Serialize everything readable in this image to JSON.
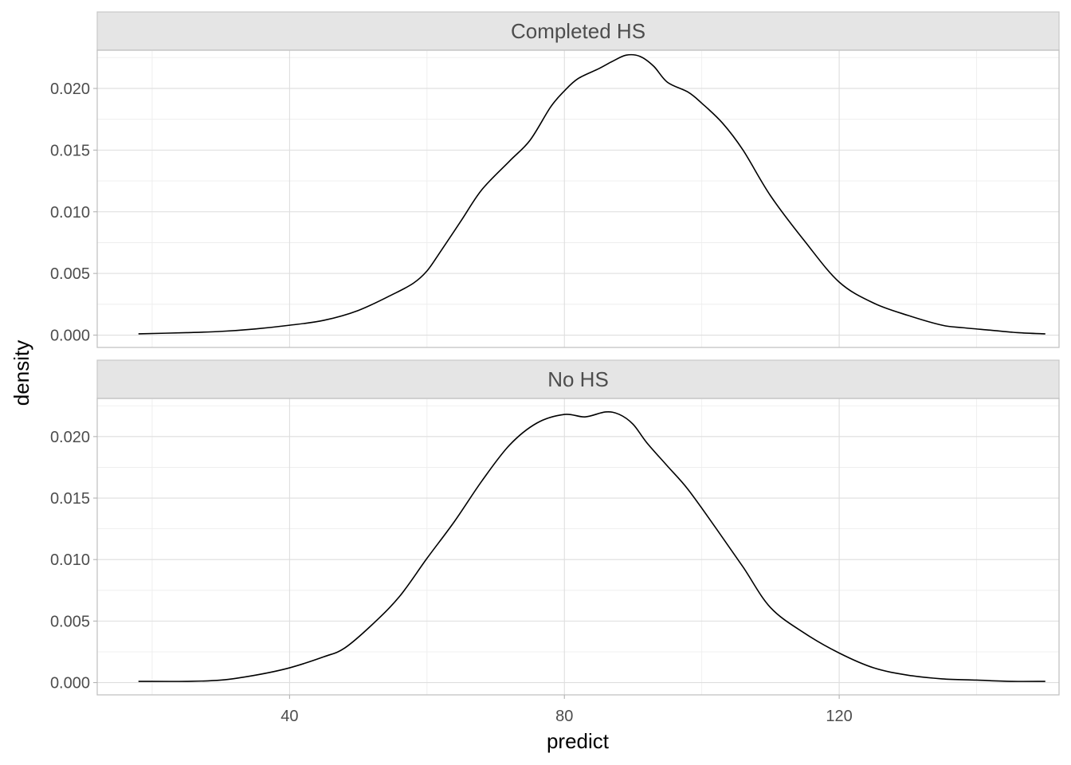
{
  "chart_data": {
    "type": "line",
    "subtype": "density",
    "xlabel": "predict",
    "ylabel": "density",
    "xlim": [
      12,
      152
    ],
    "ylim": [
      -0.001,
      0.0231
    ],
    "x_ticks": [
      40,
      80,
      120
    ],
    "x_tick_labels": [
      "40",
      "80",
      "120"
    ],
    "y_ticks": [
      0,
      0.005,
      0.01,
      0.015,
      0.02
    ],
    "y_tick_labels": [
      "0.000",
      "0.005",
      "0.010",
      "0.015",
      "0.020"
    ],
    "grid": true,
    "facets": [
      {
        "label": "Completed HS",
        "x": [
          18,
          25,
          30,
          35,
          40,
          45,
          50,
          55,
          58,
          60,
          62,
          65,
          68,
          72,
          75,
          78,
          80,
          82,
          85,
          87,
          89,
          91,
          93,
          95,
          98,
          100,
          103,
          106,
          110,
          115,
          120,
          125,
          130,
          135,
          138,
          142,
          146,
          150
        ],
        "y": [
          0.0001,
          0.0002,
          0.0003,
          0.0005,
          0.0008,
          0.0012,
          0.002,
          0.0033,
          0.0042,
          0.0052,
          0.0068,
          0.0093,
          0.0118,
          0.0141,
          0.0158,
          0.0185,
          0.0198,
          0.0208,
          0.0216,
          0.0222,
          0.0227,
          0.0226,
          0.0218,
          0.0205,
          0.0197,
          0.0188,
          0.0172,
          0.015,
          0.0113,
          0.0076,
          0.0043,
          0.0026,
          0.0016,
          0.0008,
          0.0006,
          0.0004,
          0.0002,
          0.0001
        ]
      },
      {
        "label": "No HS",
        "x": [
          18,
          25,
          30,
          35,
          40,
          45,
          48,
          52,
          56,
          60,
          64,
          68,
          72,
          76,
          80,
          83,
          86,
          88,
          90,
          92,
          95,
          98,
          102,
          106,
          110,
          115,
          120,
          125,
          130,
          135,
          140,
          145,
          150
        ],
        "y": [
          0.0001,
          0.0001,
          0.0002,
          0.0006,
          0.0012,
          0.0021,
          0.0028,
          0.0047,
          0.007,
          0.0101,
          0.0131,
          0.0164,
          0.0193,
          0.0211,
          0.0218,
          0.0216,
          0.022,
          0.0218,
          0.021,
          0.0195,
          0.0176,
          0.0157,
          0.0126,
          0.0094,
          0.0061,
          0.004,
          0.0024,
          0.0012,
          0.0006,
          0.0003,
          0.0002,
          0.0001,
          0.0001
        ]
      }
    ]
  }
}
